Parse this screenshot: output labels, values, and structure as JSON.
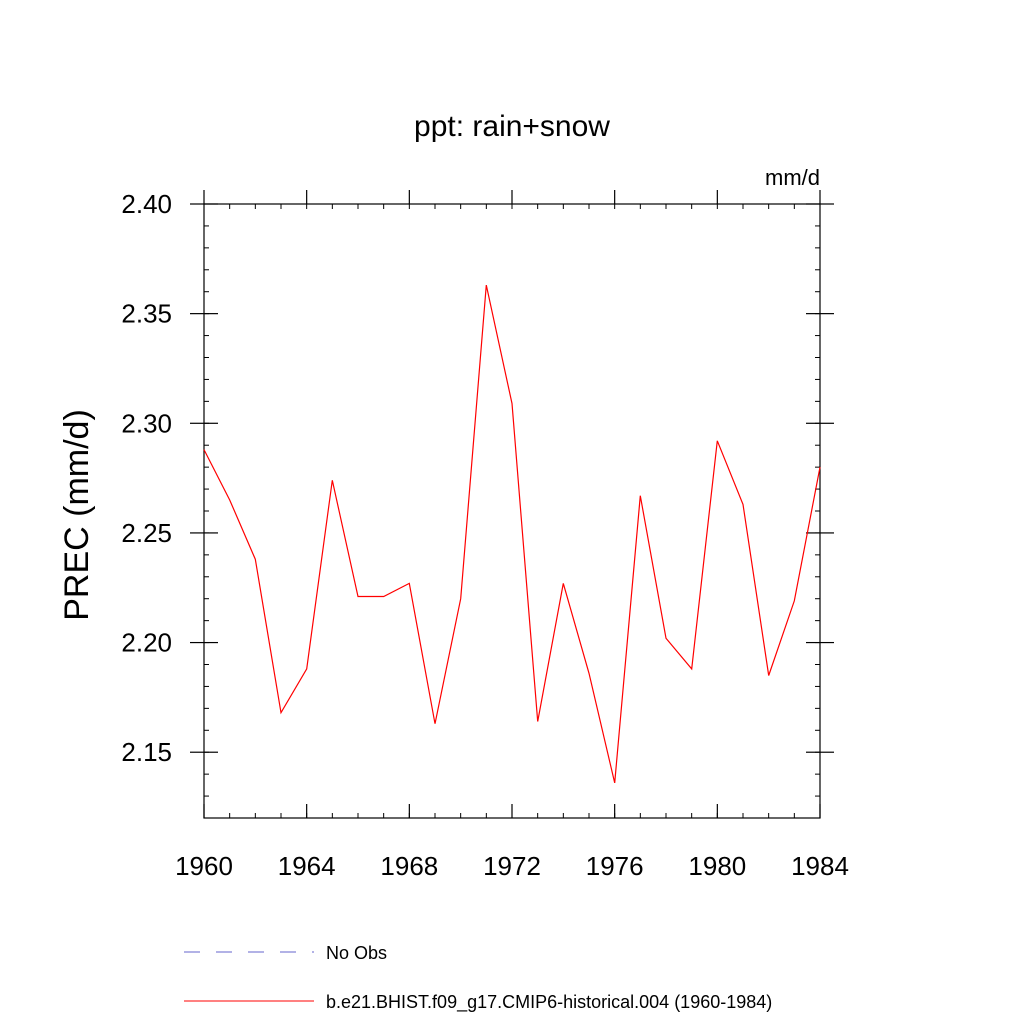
{
  "chart_data": {
    "type": "line",
    "title": "ppt: rain+snow",
    "units_label": "mm/d",
    "ylabel": "PREC  (mm/d)",
    "xlabel": "",
    "xlim": [
      1960,
      1984
    ],
    "ylim": [
      2.12,
      2.4
    ],
    "x_ticks": [
      1960,
      1964,
      1968,
      1972,
      1976,
      1980,
      1984
    ],
    "x_tick_labels": [
      "1960",
      "1964",
      "1968",
      "1972",
      "1976",
      "1980",
      "1984"
    ],
    "y_ticks": [
      2.15,
      2.2,
      2.25,
      2.3,
      2.35,
      2.4
    ],
    "y_tick_labels": [
      "2.15",
      "2.20",
      "2.25",
      "2.30",
      "2.35",
      "2.40"
    ],
    "grid": false,
    "legend_position": "bottom",
    "series": [
      {
        "name": "No Obs",
        "color": "#6666cc",
        "dashed": true,
        "x": [],
        "values": []
      },
      {
        "name": "b.e21.BHIST.f09_g17.CMIP6-historical.004 (1960-1984)",
        "color": "#ff0000",
        "dashed": false,
        "x": [
          1960,
          1961,
          1962,
          1963,
          1964,
          1965,
          1966,
          1967,
          1968,
          1969,
          1970,
          1971,
          1972,
          1973,
          1974,
          1975,
          1976,
          1977,
          1978,
          1979,
          1980,
          1981,
          1982,
          1983,
          1984
        ],
        "values": [
          2.288,
          2.265,
          2.238,
          2.168,
          2.188,
          2.274,
          2.221,
          2.221,
          2.227,
          2.163,
          2.22,
          2.363,
          2.309,
          2.164,
          2.227,
          2.186,
          2.136,
          2.267,
          2.202,
          2.188,
          2.292,
          2.263,
          2.185,
          2.219,
          2.28
        ]
      }
    ]
  }
}
